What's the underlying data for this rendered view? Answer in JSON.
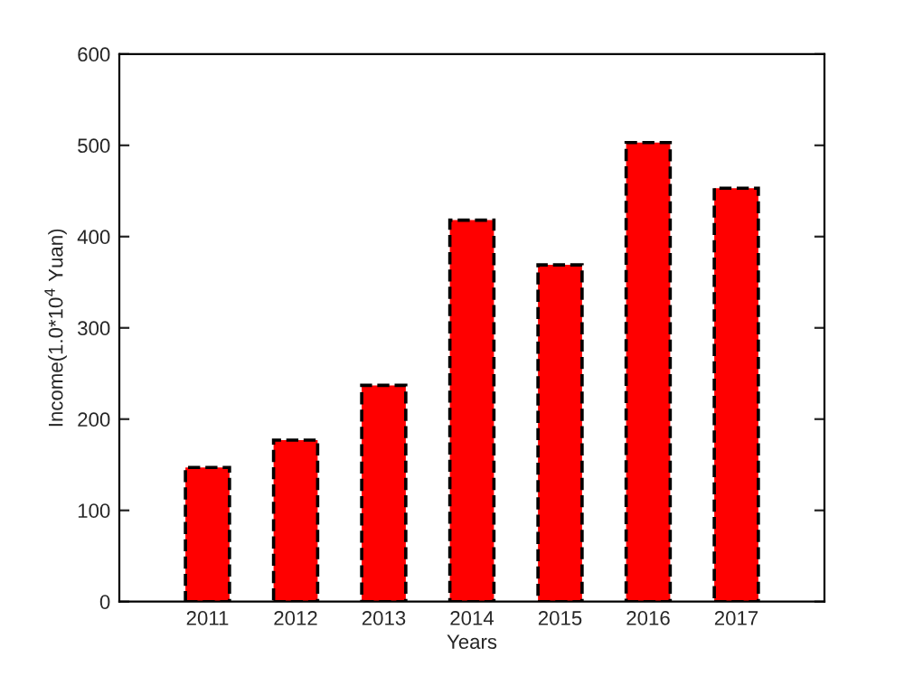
{
  "chart_data": {
    "type": "bar",
    "xlabel": "Years",
    "ylabel": "Income(1.0*10$^{4}$ Yuan)",
    "categories": [
      "2011",
      "2012",
      "2013",
      "2014",
      "2015",
      "2016",
      "2017"
    ],
    "values": [
      147,
      177,
      237,
      418,
      369,
      503,
      453
    ],
    "color": "#ff0000",
    "line_style": "dashed",
    "ylim": [
      0,
      600
    ],
    "yticks": [
      0,
      100,
      200,
      300,
      400,
      500,
      600
    ],
    "grid": false,
    "legend": false
  }
}
